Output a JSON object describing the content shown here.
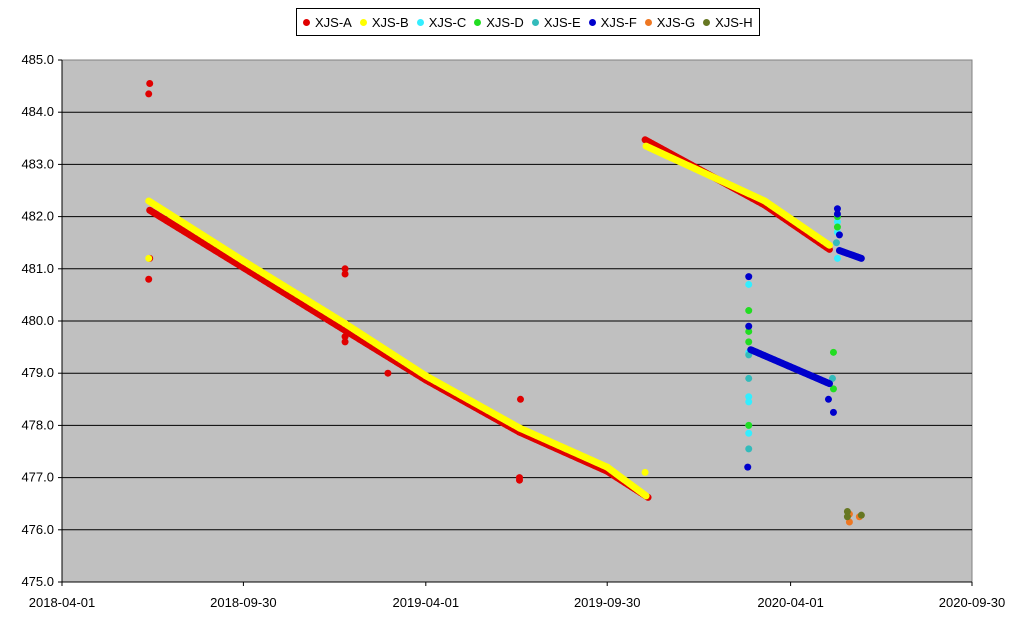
{
  "chart_data": {
    "type": "scatter",
    "title": "",
    "xlabel": "",
    "ylabel": "",
    "xlim": [
      "2018-04-01",
      "2020-09-30"
    ],
    "ylim": [
      475,
      485
    ],
    "grid": true,
    "legend_position": "top-center",
    "x_ticks": [
      "2018-04-01",
      "2018-09-30",
      "2019-04-01",
      "2019-09-30",
      "2020-04-01",
      "2020-09-30"
    ],
    "y_ticks": [
      "475.0",
      "476.0",
      "477.0",
      "478.0",
      "479.0",
      "480.0",
      "481.0",
      "482.0",
      "483.0",
      "484.0",
      "485.0"
    ],
    "series": [
      {
        "name": "XJS-A",
        "color": "#e00000",
        "lines": [
          [
            [
              "2018-06-28",
              482.15
            ],
            [
              "2018-09-30",
              481.05
            ],
            [
              "2019-01-10",
              479.85
            ],
            [
              "2019-04-01",
              478.9
            ],
            [
              "2019-07-04",
              477.9
            ],
            [
              "2019-09-30",
              477.15
            ],
            [
              "2019-11-10",
              476.65
            ]
          ],
          [
            [
              "2019-11-07",
              483.5
            ],
            [
              "2020-03-06",
              482.25
            ],
            [
              "2020-05-10",
              481.4
            ]
          ]
        ],
        "points": [
          [
            "2018-06-28",
            484.55
          ],
          [
            "2018-06-27",
            484.35
          ],
          [
            "2018-06-27",
            480.8
          ],
          [
            "2018-06-28",
            481.2
          ],
          [
            "2019-01-10",
            481.0
          ],
          [
            "2019-01-10",
            480.9
          ],
          [
            "2019-01-10",
            479.7
          ],
          [
            "2019-01-10",
            479.6
          ],
          [
            "2019-02-22",
            479.0
          ],
          [
            "2019-07-05",
            478.5
          ],
          [
            "2019-07-04",
            477.0
          ],
          [
            "2019-07-04",
            476.95
          ]
        ]
      },
      {
        "name": "XJS-B",
        "color": "#ffff00",
        "lines": [
          [
            [
              "2018-06-27",
              482.3
            ],
            [
              "2018-09-30",
              481.15
            ],
            [
              "2019-01-10",
              479.95
            ],
            [
              "2019-04-01",
              478.95
            ],
            [
              "2019-07-04",
              477.95
            ],
            [
              "2019-09-30",
              477.2
            ],
            [
              "2019-11-08",
              476.65
            ]
          ],
          [
            [
              "2019-11-08",
              483.35
            ],
            [
              "2020-03-06",
              482.3
            ],
            [
              "2020-05-10",
              481.45
            ]
          ]
        ],
        "points": [
          [
            "2018-06-27",
            481.2
          ],
          [
            "2019-11-07",
            477.1
          ]
        ]
      },
      {
        "name": "XJS-C",
        "color": "#33eeff",
        "lines": [],
        "points": [
          [
            "2020-02-19",
            480.7
          ],
          [
            "2020-02-19",
            479.4
          ],
          [
            "2020-02-19",
            478.55
          ],
          [
            "2020-02-19",
            478.45
          ],
          [
            "2020-02-19",
            478.0
          ],
          [
            "2020-02-19",
            477.85
          ],
          [
            "2020-05-18",
            481.9
          ],
          [
            "2020-05-18",
            481.7
          ],
          [
            "2020-05-18",
            481.2
          ]
        ]
      },
      {
        "name": "XJS-D",
        "color": "#22dd22",
        "lines": [],
        "points": [
          [
            "2020-02-19",
            480.2
          ],
          [
            "2020-02-19",
            479.8
          ],
          [
            "2020-02-19",
            479.6
          ],
          [
            "2020-02-19",
            478.0
          ],
          [
            "2020-05-14",
            479.4
          ],
          [
            "2020-05-14",
            478.7
          ],
          [
            "2020-05-18",
            482.0
          ],
          [
            "2020-05-18",
            481.8
          ]
        ]
      },
      {
        "name": "XJS-E",
        "color": "#33bbbb",
        "lines": [],
        "points": [
          [
            "2020-02-19",
            479.35
          ],
          [
            "2020-02-19",
            478.9
          ],
          [
            "2020-02-19",
            477.55
          ],
          [
            "2020-05-13",
            478.9
          ],
          [
            "2020-05-17",
            481.5
          ]
        ]
      },
      {
        "name": "XJS-F",
        "color": "#0000cc",
        "lines": [
          [
            [
              "2020-02-21",
              479.45
            ],
            [
              "2020-05-10",
              478.8
            ]
          ],
          [
            [
              "2020-05-20",
              481.35
            ],
            [
              "2020-06-11",
              481.2
            ]
          ]
        ],
        "points": [
          [
            "2020-02-19",
            480.85
          ],
          [
            "2020-02-19",
            479.9
          ],
          [
            "2020-02-18",
            477.2
          ],
          [
            "2020-05-09",
            478.5
          ],
          [
            "2020-05-14",
            478.25
          ],
          [
            "2020-05-18",
            482.15
          ],
          [
            "2020-05-18",
            482.05
          ],
          [
            "2020-05-20",
            481.65
          ]
        ]
      },
      {
        "name": "XJS-G",
        "color": "#ee7722",
        "lines": [],
        "points": [
          [
            "2020-05-30",
            476.3
          ],
          [
            "2020-05-30",
            476.15
          ],
          [
            "2020-06-09",
            476.25
          ]
        ]
      },
      {
        "name": "XJS-H",
        "color": "#667722",
        "lines": [],
        "points": [
          [
            "2020-05-28",
            476.35
          ],
          [
            "2020-05-28",
            476.25
          ],
          [
            "2020-06-11",
            476.28
          ]
        ]
      }
    ]
  }
}
